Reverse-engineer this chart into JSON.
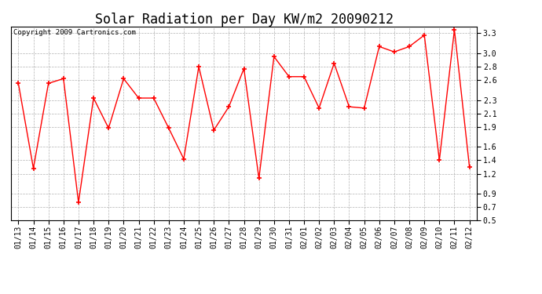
{
  "title": "Solar Radiation per Day KW/m2 20090212",
  "copyright": "Copyright 2009 Cartronics.com",
  "dates": [
    "01/13",
    "01/14",
    "01/15",
    "01/16",
    "01/17",
    "01/18",
    "01/19",
    "01/20",
    "01/21",
    "01/22",
    "01/23",
    "01/24",
    "01/25",
    "01/26",
    "01/27",
    "01/28",
    "01/29",
    "01/30",
    "01/31",
    "02/01",
    "02/02",
    "02/03",
    "02/04",
    "02/05",
    "02/06",
    "02/07",
    "02/08",
    "02/09",
    "02/10",
    "02/11",
    "02/12"
  ],
  "values": [
    2.55,
    1.28,
    2.55,
    2.62,
    0.77,
    2.33,
    1.88,
    2.62,
    2.33,
    2.33,
    1.88,
    1.42,
    2.8,
    1.85,
    2.2,
    2.77,
    1.13,
    2.95,
    2.65,
    2.65,
    2.18,
    2.85,
    2.2,
    2.18,
    3.1,
    3.02,
    3.1,
    3.27,
    1.4,
    3.35,
    1.3
  ],
  "line_color": "#ff0000",
  "marker": "+",
  "marker_size": 5,
  "marker_linewidth": 1.2,
  "bg_color": "#ffffff",
  "plot_bg_color": "#ffffff",
  "grid_color": "#aaaaaa",
  "grid_style": "--",
  "ylim": [
    0.5,
    3.4
  ],
  "yticks": [
    0.5,
    0.7,
    0.9,
    1.2,
    1.4,
    1.6,
    1.9,
    2.1,
    2.3,
    2.6,
    2.8,
    3.0,
    3.3
  ],
  "title_fontsize": 12,
  "tick_fontsize": 7,
  "copyright_fontsize": 6.5,
  "line_width": 1.0
}
